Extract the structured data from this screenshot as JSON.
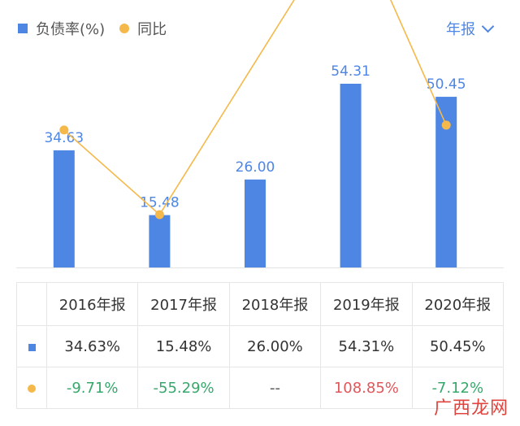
{
  "legend": {
    "bar_label": "负债率(%)",
    "line_label": "同比"
  },
  "period_selector": "年报",
  "colors": {
    "bar": "#4e86e4",
    "line": "#f5b94b",
    "negative": "#36a86b",
    "positive": "#e0575b"
  },
  "chart_data": {
    "type": "bar",
    "categories": [
      "2016年报",
      "2017年报",
      "2018年报",
      "2019年报",
      "2020年报"
    ],
    "series": [
      {
        "name": "负债率(%)",
        "type": "bar",
        "values": [
          34.63,
          15.48,
          26.0,
          54.31,
          50.45
        ]
      },
      {
        "name": "同比",
        "type": "line",
        "values": [
          -9.71,
          -55.29,
          null,
          108.85,
          -7.12
        ]
      }
    ],
    "bar_labels": [
      "34.63",
      "15.48",
      "26.00",
      "54.31",
      "50.45"
    ],
    "title": "",
    "xlabel": "",
    "ylabel": "",
    "legend_position": "top-left",
    "grid": false
  },
  "table": {
    "headers": [
      "2016年报",
      "2017年报",
      "2018年报",
      "2019年报",
      "2020年报"
    ],
    "row_ratio": [
      "34.63%",
      "15.48%",
      "26.00%",
      "54.31%",
      "50.45%"
    ],
    "row_yoy": [
      "-9.71%",
      "-55.29%",
      "--",
      "108.85%",
      "-7.12%"
    ]
  },
  "watermark": "广西龙网"
}
